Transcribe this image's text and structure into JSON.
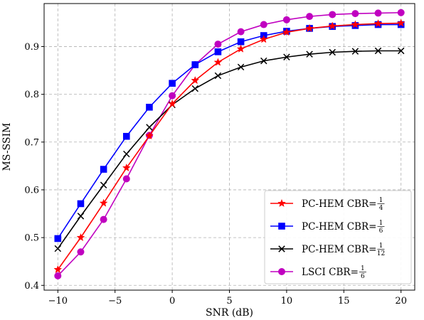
{
  "chart_data": {
    "type": "line",
    "xlabel": "SNR (dB)",
    "ylabel": "MS-SSIM",
    "xlim": [
      -11.2,
      21.2
    ],
    "ylim": [
      0.39,
      0.99
    ],
    "xticks": [
      -10,
      -5,
      0,
      5,
      10,
      15,
      20
    ],
    "xtick_labels": [
      "−10",
      "−5",
      "0",
      "5",
      "10",
      "15",
      "20"
    ],
    "yticks": [
      0.4,
      0.5,
      0.6,
      0.7,
      0.8,
      0.9
    ],
    "ytick_labels": [
      "0.4",
      "0.5",
      "0.6",
      "0.7",
      "0.8",
      "0.9"
    ],
    "grid": true,
    "grid_style": "dashed",
    "legend_position": "bottom-right",
    "x": [
      -10,
      -8,
      -6,
      -4,
      -2,
      0,
      2,
      4,
      6,
      8,
      10,
      12,
      14,
      16,
      18,
      20
    ],
    "series": [
      {
        "name": "PC-HEM CBR=",
        "frac_num": "1",
        "frac_den": "4",
        "color": "#ff0000",
        "marker": "star",
        "values": [
          0.433,
          0.5,
          0.572,
          0.646,
          0.713,
          0.78,
          0.829,
          0.867,
          0.895,
          0.915,
          0.93,
          0.938,
          0.943,
          0.946,
          0.948,
          0.949
        ]
      },
      {
        "name": "PC-HEM CBR=",
        "frac_num": "1",
        "frac_den": "6",
        "color": "#0000ff",
        "marker": "square",
        "values": [
          0.498,
          0.571,
          0.643,
          0.712,
          0.773,
          0.823,
          0.862,
          0.889,
          0.91,
          0.923,
          0.932,
          0.938,
          0.942,
          0.944,
          0.946,
          0.946
        ]
      },
      {
        "name": "PC-HEM CBR=",
        "frac_num": "1",
        "frac_den": "12",
        "color": "#000000",
        "marker": "x",
        "values": [
          0.477,
          0.545,
          0.61,
          0.675,
          0.731,
          0.778,
          0.812,
          0.839,
          0.857,
          0.87,
          0.878,
          0.884,
          0.888,
          0.89,
          0.891,
          0.891
        ]
      },
      {
        "name": "LSCI CBR=",
        "frac_num": "1",
        "frac_den": "6",
        "color": "#c000c0",
        "marker": "circle",
        "values": [
          0.42,
          0.47,
          0.538,
          0.623,
          0.714,
          0.797,
          0.862,
          0.905,
          0.931,
          0.946,
          0.956,
          0.963,
          0.967,
          0.969,
          0.97,
          0.971
        ]
      }
    ]
  }
}
